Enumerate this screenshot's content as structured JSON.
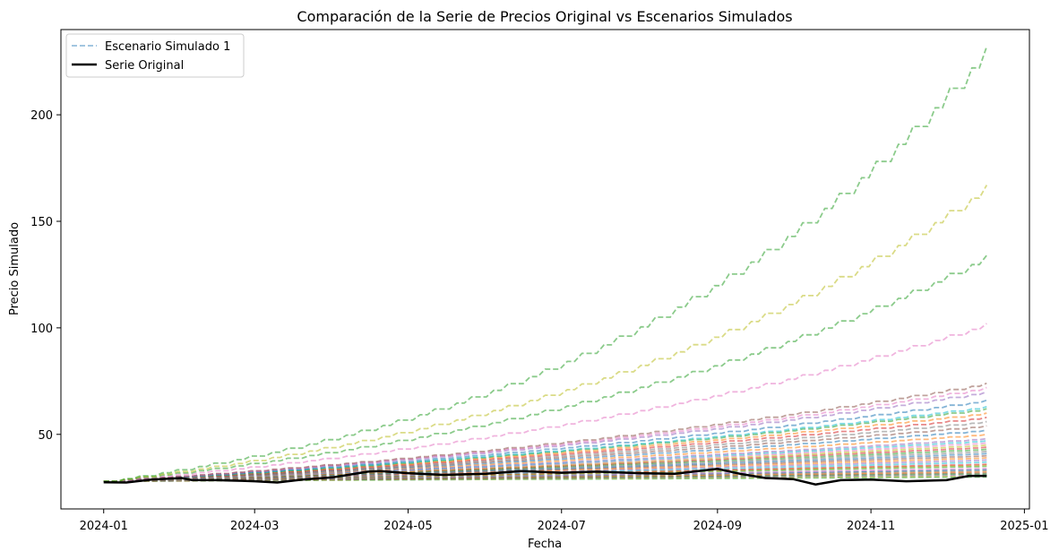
{
  "chart_data": {
    "type": "line",
    "title": "Comparación de la Serie de Precios Original vs Escenarios Simulados",
    "xlabel": "Fecha",
    "ylabel": "Precio Simulado",
    "x_start": "2024-01-01",
    "x_end": "2024-12-17",
    "xlim": [
      "2023-12-15",
      "2025-01-03"
    ],
    "ylim": [
      15,
      240
    ],
    "x_ticks": [
      "2024-01",
      "2024-03",
      "2024-05",
      "2024-07",
      "2024-09",
      "2024-11",
      "2025-01"
    ],
    "x_tick_dates": [
      "2024-01-01",
      "2024-03-01",
      "2024-05-01",
      "2024-07-01",
      "2024-09-01",
      "2024-11-01",
      "2025-01-01"
    ],
    "y_ticks": [
      50,
      100,
      150,
      200
    ],
    "grid": false,
    "legend": {
      "position": "top-left",
      "entries": [
        {
          "label": "Escenario Simulado 1",
          "style": "dashed",
          "color": "#1f77b4"
        },
        {
          "label": "Serie Original",
          "style": "solid",
          "color": "#000000"
        }
      ]
    },
    "simulated_final_values": [
      232,
      167,
      134,
      102,
      74,
      72,
      70,
      66,
      63,
      62,
      60,
      58,
      56,
      54,
      52,
      50,
      48,
      47,
      46,
      45,
      44,
      43,
      42,
      41,
      40,
      39,
      38,
      37,
      36,
      35.5,
      35,
      34,
      33.5,
      33,
      32.5,
      32,
      31.5,
      31,
      30.5,
      30
    ],
    "simulated_start_value": 28,
    "simulated_colors": [
      "#2ca02c",
      "#bcbd22",
      "#2ca02c",
      "#e377c2",
      "#8c564b",
      "#e377c2",
      "#9467bd",
      "#1f77b4",
      "#17becf",
      "#2ca02c",
      "#ff7f0e",
      "#d62728",
      "#7f7f7f",
      "#8c564b",
      "#1f77b4",
      "#ff7f0e",
      "#9467bd",
      "#17becf",
      "#e377c2",
      "#bcbd22",
      "#d62728",
      "#2ca02c",
      "#7f7f7f",
      "#1f77b4",
      "#8c564b",
      "#ff7f0e",
      "#9467bd",
      "#17becf",
      "#d62728",
      "#bcbd22",
      "#2ca02c",
      "#e377c2",
      "#1f77b4",
      "#7f7f7f",
      "#ff7f0e",
      "#8c564b",
      "#2ca02c",
      "#9467bd",
      "#bcbd22",
      "#2ca02c"
    ],
    "original_series": [
      {
        "x": "2024-01-01",
        "y": 27.5
      },
      {
        "x": "2024-01-10",
        "y": 27.4
      },
      {
        "x": "2024-01-20",
        "y": 28.8
      },
      {
        "x": "2024-02-01",
        "y": 29.5
      },
      {
        "x": "2024-02-05",
        "y": 28.6
      },
      {
        "x": "2024-02-15",
        "y": 28.5
      },
      {
        "x": "2024-02-25",
        "y": 28.2
      },
      {
        "x": "2024-03-01",
        "y": 28.0
      },
      {
        "x": "2024-03-10",
        "y": 27.4
      },
      {
        "x": "2024-03-20",
        "y": 28.8
      },
      {
        "x": "2024-04-01",
        "y": 29.8
      },
      {
        "x": "2024-04-15",
        "y": 32.5
      },
      {
        "x": "2024-04-20",
        "y": 32.8
      },
      {
        "x": "2024-05-01",
        "y": 31.8
      },
      {
        "x": "2024-05-15",
        "y": 31.0
      },
      {
        "x": "2024-06-01",
        "y": 31.5
      },
      {
        "x": "2024-06-15",
        "y": 32.8
      },
      {
        "x": "2024-07-01",
        "y": 32.0
      },
      {
        "x": "2024-07-15",
        "y": 32.5
      },
      {
        "x": "2024-08-01",
        "y": 31.8
      },
      {
        "x": "2024-08-15",
        "y": 31.5
      },
      {
        "x": "2024-09-01",
        "y": 33.8
      },
      {
        "x": "2024-09-10",
        "y": 31.5
      },
      {
        "x": "2024-09-20",
        "y": 29.5
      },
      {
        "x": "2024-10-01",
        "y": 29.0
      },
      {
        "x": "2024-10-10",
        "y": 26.5
      },
      {
        "x": "2024-10-20",
        "y": 28.5
      },
      {
        "x": "2024-11-01",
        "y": 28.8
      },
      {
        "x": "2024-11-15",
        "y": 28.0
      },
      {
        "x": "2024-12-01",
        "y": 28.5
      },
      {
        "x": "2024-12-10",
        "y": 30.5
      },
      {
        "x": "2024-12-17",
        "y": 30.5
      }
    ]
  }
}
